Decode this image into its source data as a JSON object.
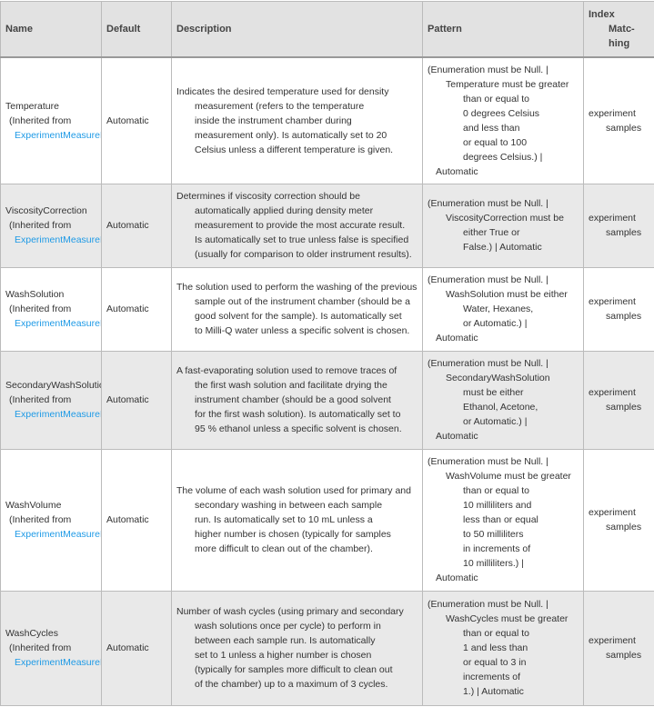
{
  "headers": {
    "name": "Name",
    "default": "Default",
    "description": "Description",
    "pattern": "Pattern",
    "index1": "Index",
    "index2": "Matc-",
    "index3": "hing"
  },
  "colors": {
    "link": "#1e9ae6",
    "header_bg": "#e2e2e2",
    "alt_row_bg": "#e9e9e9"
  },
  "rows": [
    {
      "name": "Temperature",
      "inherited": "(Inherited from",
      "link": "ExperimentMeasureDensity",
      "default": "Automatic",
      "description": [
        "Indicates the desired temperature used for density",
        "measurement (refers to the temperature",
        "inside the instrument chamber during",
        "measurement only).  Is automatically set to 20",
        "Celsius unless a different temperature is given."
      ],
      "pattern": [
        "(Enumeration must be Null.  |",
        "Temperature must be greater",
        "than or equal to",
        "0 degrees Celsius",
        "and less than",
        "or equal to 100",
        "degrees Celsius.)  |",
        "Automatic"
      ],
      "index": [
        "experiment",
        "samples"
      ]
    },
    {
      "name": "ViscosityCorrection",
      "inherited": "(Inherited from",
      "link": "ExperimentMeasureDensity",
      "default": "Automatic",
      "description": [
        "Determines if viscosity correction should be",
        "automatically applied during density meter",
        "measurement to provide the most accurate result.",
        "Is automatically set to true unless false is specified",
        "(usually for comparison to older instrument results)."
      ],
      "pattern": [
        "(Enumeration must be Null.  |",
        "ViscosityCorrection must be",
        "either True or",
        "False.)  |  Automatic"
      ],
      "index": [
        "experiment",
        "samples"
      ]
    },
    {
      "name": "WashSolution",
      "inherited": "(Inherited from",
      "link": "ExperimentMeasureDensity",
      "default": "Automatic",
      "description": [
        "The solution used to perform the washing of the previous",
        "sample out of the instrument chamber (should be a",
        "good solvent for the sample).  Is automatically set",
        "to Milli-Q water unless a specific solvent is chosen."
      ],
      "pattern": [
        "(Enumeration must be Null.  |",
        "WashSolution must be either",
        "Water, Hexanes,",
        "or Automatic.)  |",
        "Automatic"
      ],
      "index": [
        "experiment",
        "samples"
      ]
    },
    {
      "name": "SecondaryWashSolution",
      "inherited": "(Inherited from",
      "link": "ExperimentMeasureDensity",
      "default": "Automatic",
      "description": [
        "A fast-evaporating solution used to remove traces of",
        "the first wash solution and facilitate drying the",
        "instrument chamber (should be a good solvent",
        "for the first wash solution).  Is automatically set to",
        "95 % ethanol unless a specific solvent is chosen."
      ],
      "pattern": [
        "(Enumeration must be Null.  |",
        "SecondaryWashSolution",
        "must be either",
        "Ethanol, Acetone,",
        "or Automatic.)  |",
        "Automatic"
      ],
      "index": [
        "experiment",
        "samples"
      ]
    },
    {
      "name": "WashVolume",
      "inherited": "(Inherited from",
      "link": "ExperimentMeasureDensity",
      "default": "Automatic",
      "description": [
        "The volume of each wash solution used for primary and",
        "secondary washing in between each sample",
        "run.  Is automatically set to 10 mL unless a",
        "higher number is chosen (typically for samples",
        "more difficult to clean out of the chamber)."
      ],
      "pattern": [
        "(Enumeration must be Null.  |",
        "WashVolume must be greater",
        "than or equal to",
        "10 milliliters and",
        "less than or equal",
        "to 50 milliliters",
        "in increments of",
        "10 milliliters.)  |",
        "Automatic"
      ],
      "index": [
        "experiment",
        "samples"
      ]
    },
    {
      "name": "WashCycles",
      "inherited": "(Inherited from",
      "link": "ExperimentMeasureDensity",
      "default": "Automatic",
      "description": [
        "Number of wash cycles (using primary and secondary",
        "wash solutions once per cycle) to perform in",
        "between each sample run.  Is automatically",
        "set to 1 unless a higher number is chosen",
        "(typically for samples more difficult to clean out",
        "of the chamber) up to a maximum of 3 cycles."
      ],
      "pattern": [
        "(Enumeration must be Null.  |",
        "WashCycles must be greater",
        "than or equal to",
        "1 and less than",
        "or equal to 3 in",
        "increments of",
        "1.)  |  Automatic"
      ],
      "index": [
        "experiment",
        "samples"
      ]
    }
  ]
}
